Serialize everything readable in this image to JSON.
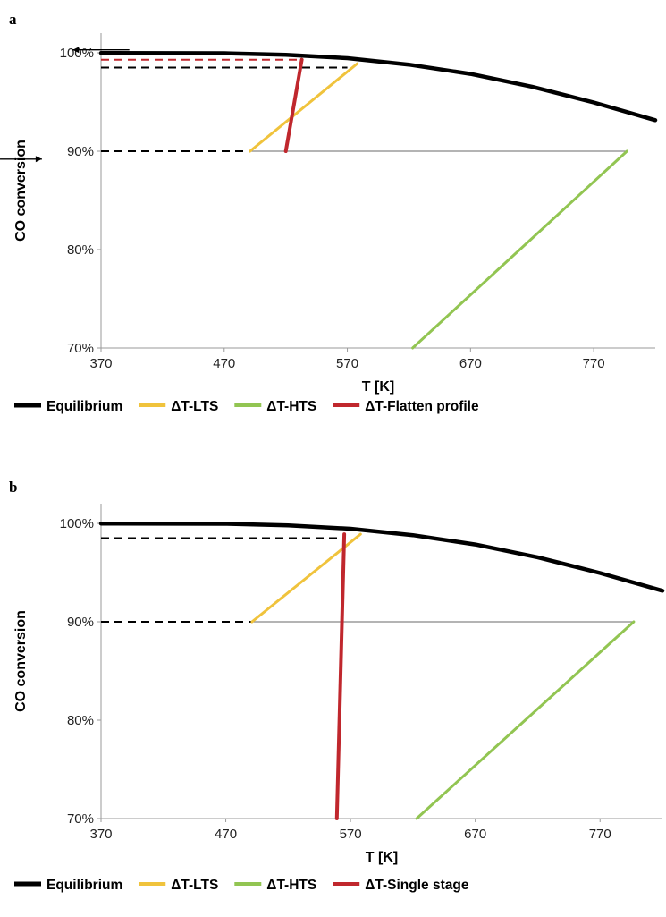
{
  "chart_data": [
    {
      "panel_label": "a",
      "type": "line",
      "xlabel": "T [K]",
      "ylabel": "CO conversion",
      "xlim": [
        370,
        820
      ],
      "ylim": [
        0.7,
        1.02
      ],
      "x_ticks": [
        370,
        470,
        570,
        670,
        770
      ],
      "y_ticks": [
        0.7,
        0.8,
        0.9,
        1.0
      ],
      "x_tick_labels": [
        "370",
        "470",
        "570",
        "670",
        "770"
      ],
      "y_tick_labels": [
        "70%",
        "80%",
        "90%",
        "100%"
      ],
      "grid": false,
      "legend_position": "bottom",
      "series": [
        {
          "name": "Equilibrium",
          "color": "#000000",
          "x": [
            370,
            470,
            520,
            570,
            620,
            670,
            720,
            770,
            820
          ],
          "y": [
            0.9998,
            0.9995,
            0.998,
            0.9945,
            0.988,
            0.9785,
            0.9655,
            0.9495,
            0.9315
          ]
        },
        {
          "name": "ΔT-LTS",
          "color": "#f0c33c",
          "x": [
            491,
            578
          ],
          "y": [
            0.9,
            0.989
          ]
        },
        {
          "name": "ΔT-HTS",
          "color": "#92c552",
          "x": [
            623,
            797
          ],
          "y": [
            0.7,
            0.9
          ]
        },
        {
          "name": "ΔT-Flatten profile",
          "color": "#c0272d",
          "x": [
            520,
            533
          ],
          "y": [
            0.9,
            0.993
          ]
        }
      ],
      "reference_lines": [
        {
          "color": "#000000",
          "style": "dashed",
          "x": [
            370,
            491
          ],
          "y": [
            0.9,
            0.9
          ]
        },
        {
          "color": "#000000",
          "style": "dashed",
          "x": [
            370,
            570
          ],
          "y": [
            0.985,
            0.985
          ]
        },
        {
          "color": "#c0272d",
          "style": "dashed",
          "x": [
            370,
            533
          ],
          "y": [
            0.993,
            0.993
          ]
        },
        {
          "color": "#888888",
          "style": "solid",
          "x": [
            491,
            797
          ],
          "y": [
            0.9,
            0.9
          ]
        }
      ],
      "arrows": [
        {
          "direction": "left",
          "x": [
            393,
            347
          ],
          "y": [
            1.003,
            1.003
          ]
        },
        {
          "direction": "right",
          "x": [
            288,
            322
          ],
          "y": [
            0.892,
            0.892
          ]
        }
      ]
    },
    {
      "panel_label": "b",
      "type": "line",
      "xlabel": "T [K]",
      "ylabel": "CO conversion",
      "xlim": [
        370,
        820
      ],
      "ylim": [
        0.7,
        1.02
      ],
      "x_ticks": [
        370,
        470,
        570,
        670,
        770
      ],
      "y_ticks": [
        0.7,
        0.8,
        0.9,
        1.0
      ],
      "x_tick_labels": [
        "370",
        "470",
        "570",
        "670",
        "770"
      ],
      "y_tick_labels": [
        "70%",
        "80%",
        "90%",
        "100%"
      ],
      "grid": false,
      "legend_position": "bottom",
      "series": [
        {
          "name": "Equilibrium",
          "color": "#000000",
          "x": [
            370,
            470,
            520,
            570,
            620,
            670,
            720,
            770,
            820
          ],
          "y": [
            0.9998,
            0.9995,
            0.998,
            0.9945,
            0.988,
            0.9785,
            0.9655,
            0.9495,
            0.9315
          ]
        },
        {
          "name": "ΔT-LTS",
          "color": "#f0c33c",
          "x": [
            491,
            578
          ],
          "y": [
            0.9,
            0.989
          ]
        },
        {
          "name": "ΔT-HTS",
          "color": "#92c552",
          "x": [
            623,
            797
          ],
          "y": [
            0.7,
            0.9
          ]
        },
        {
          "name": "ΔT-Single stage",
          "color": "#c0272d",
          "x": [
            559,
            565
          ],
          "y": [
            0.7,
            0.989
          ]
        }
      ],
      "reference_lines": [
        {
          "color": "#000000",
          "style": "dashed",
          "x": [
            370,
            491
          ],
          "y": [
            0.9,
            0.9
          ]
        },
        {
          "color": "#000000",
          "style": "dashed",
          "x": [
            370,
            565
          ],
          "y": [
            0.985,
            0.985
          ]
        },
        {
          "color": "#888888",
          "style": "solid",
          "x": [
            491,
            797
          ],
          "y": [
            0.9,
            0.9
          ]
        }
      ],
      "arrows": []
    }
  ]
}
